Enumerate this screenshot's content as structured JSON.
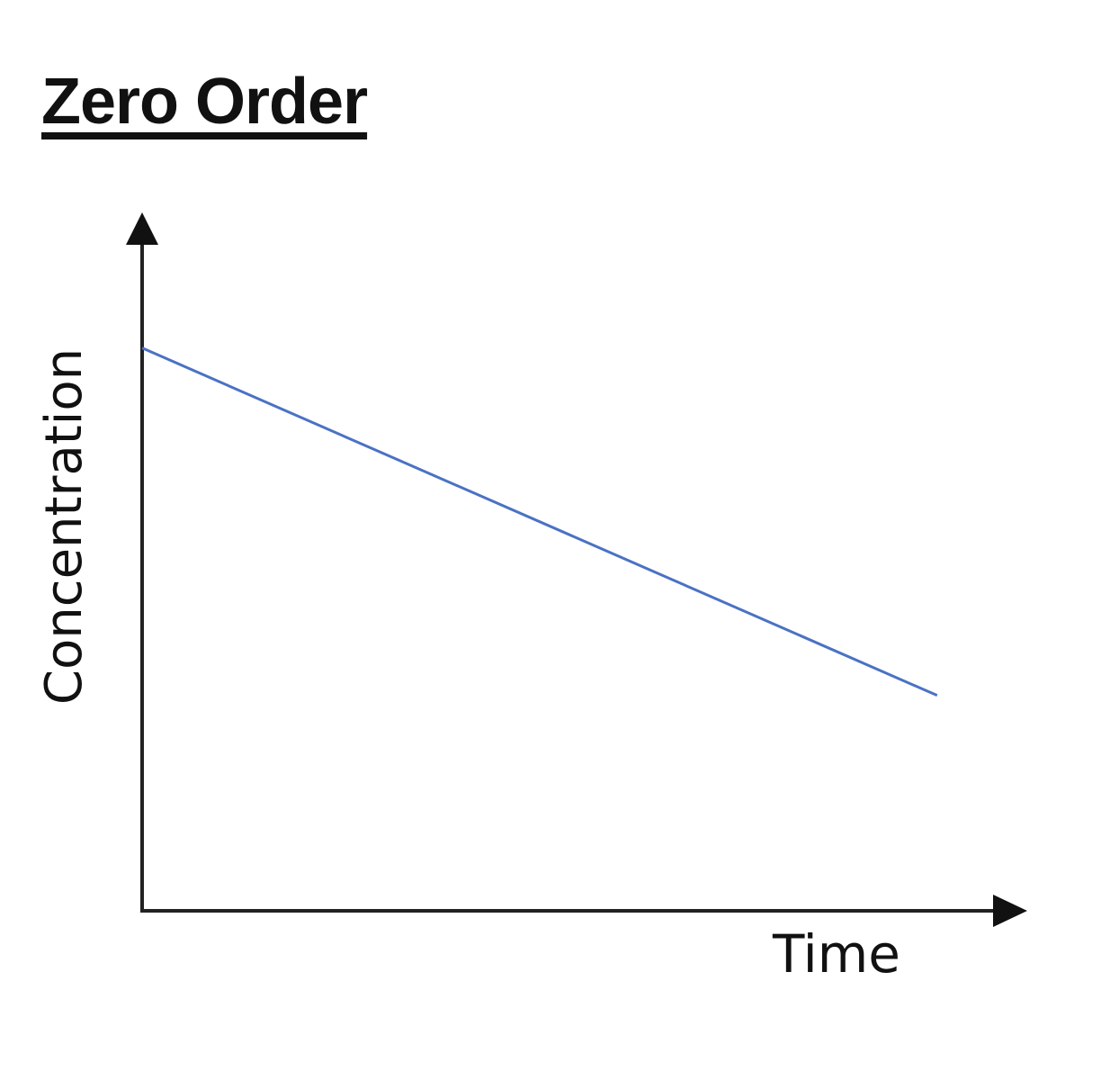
{
  "chart_data": {
    "type": "line",
    "title": "Zero Order",
    "xlabel": "Time",
    "ylabel": "Concentration",
    "xlim": [
      0,
      1
    ],
    "ylim": [
      0,
      1
    ],
    "grid": false,
    "ticks": "none",
    "series": [
      {
        "x": [
          0,
          0.9
        ],
        "y": [
          0.81,
          0.31
        ],
        "color": "#4a72c4"
      }
    ],
    "axis_color": "#222222"
  }
}
